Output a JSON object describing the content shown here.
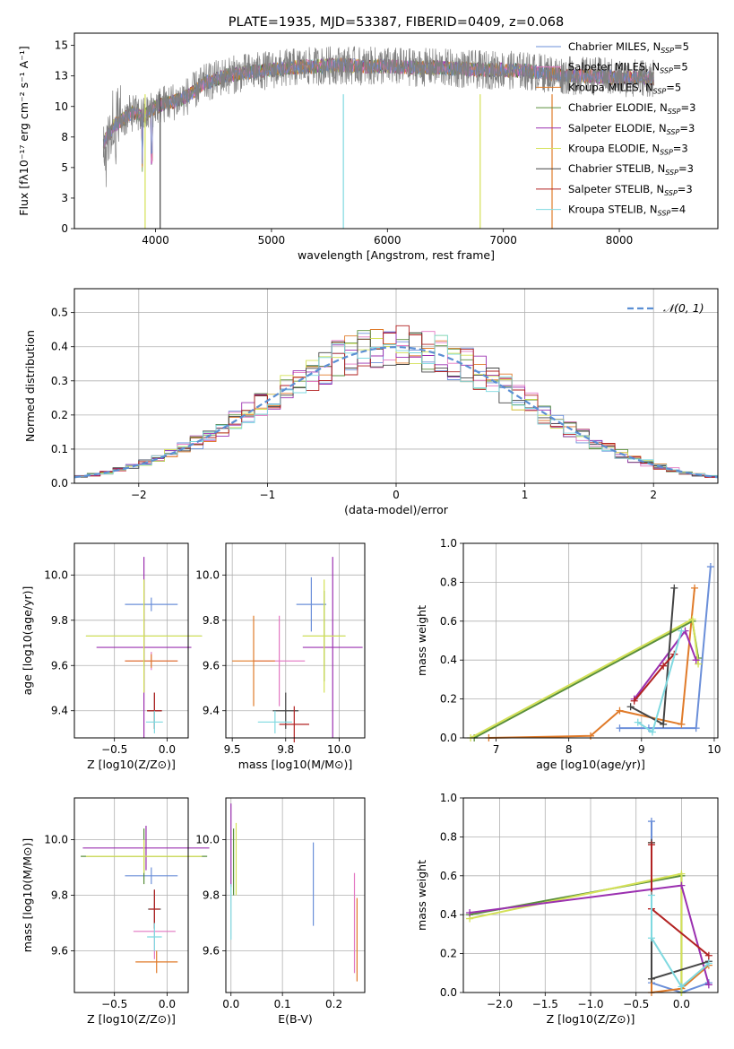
{
  "chart_data": [
    {
      "id": "spectrum",
      "type": "line",
      "title": "PLATE=1935, MJD=53387, FIBERID=0409, z=0.068",
      "xlabel": "wavelength [Angstrom, rest frame]",
      "ylabel": "Flux [fλ10⁻¹⁷ erg cm⁻² s⁻¹ A⁻¹]",
      "xlim": [
        3300,
        8850
      ],
      "ylim": [
        0,
        16
      ],
      "xticks": [
        4000,
        5000,
        6000,
        7000,
        8000
      ],
      "yticks": [
        0.0,
        2.5,
        5.0,
        7.5,
        10.0,
        12.5,
        15.0
      ],
      "legend_position": "top-right",
      "legend": [
        {
          "label": "Chabrier MILES, N_SSP=5",
          "color": "#6b8fd9"
        },
        {
          "label": "Salpeter MILES, N_SSP=5",
          "color": "#e377c2"
        },
        {
          "label": "Kroupa MILES, N_SSP=5",
          "color": "#e07b2a"
        },
        {
          "label": "Chabrier ELODIE, N_SSP=3",
          "color": "#5a8f3c"
        },
        {
          "label": "Salpeter ELODIE, N_SSP=3",
          "color": "#9b30b0"
        },
        {
          "label": "Kroupa ELODIE, N_SSP=3",
          "color": "#d4e157"
        },
        {
          "label": "Chabrier STELIB, N_SSP=3",
          "color": "#444444"
        },
        {
          "label": "Salpeter STELIB, N_SSP=3",
          "color": "#b22222"
        },
        {
          "label": "Kroupa STELIB, N_SSP=4",
          "color": "#7fd9e0"
        }
      ],
      "data_series": {
        "name": "data",
        "color": "#808080",
        "envelope_x": [
          3550,
          3650,
          3800,
          3900,
          4000,
          4100,
          4200,
          4300,
          4400,
          4600,
          4800,
          5000,
          5200,
          5400,
          5600,
          5800,
          6000,
          6200,
          6400,
          6600,
          6800,
          7000,
          7200,
          7400,
          7600,
          7800,
          8000,
          8200,
          8300
        ],
        "envelope_y": [
          7.0,
          8.5,
          9.5,
          9.2,
          10.0,
          10.3,
          10.5,
          11.0,
          11.8,
          12.5,
          12.8,
          13.0,
          13.2,
          13.3,
          13.4,
          13.3,
          13.3,
          13.2,
          13.2,
          13.1,
          13.0,
          13.0,
          12.9,
          12.7,
          12.5,
          12.5,
          12.3,
          12.4,
          12.3
        ]
      }
    },
    {
      "id": "residuals",
      "type": "line",
      "xlabel": "(data-model)/error",
      "ylabel": "Normed distribution",
      "xlim": [
        -2.5,
        2.5
      ],
      "ylim": [
        0,
        0.57
      ],
      "xticks": [
        -2,
        -1,
        0,
        1,
        2
      ],
      "yticks": [
        0.0,
        0.1,
        0.2,
        0.3,
        0.4,
        0.5
      ],
      "legend": [
        {
          "label": "N(0,1)",
          "color": "#5b8fd4"
        }
      ],
      "gaussian": {
        "mean": 0,
        "sigma": 1
      }
    },
    {
      "id": "age_vs_Z",
      "type": "scatter",
      "xlabel": "Z [log10(Z/Z⊙)]",
      "ylabel": "age  [log10(age/yr)]",
      "xlim": [
        -0.88,
        0.2
      ],
      "ylim": [
        9.28,
        10.14
      ],
      "xticks": [
        -0.5,
        0.0
      ],
      "yticks": [
        9.4,
        9.6,
        9.8,
        10.0
      ],
      "points": [
        {
          "color": "#6b8fd9",
          "x": -0.15,
          "y": 9.87,
          "xerr": 0.25,
          "yerr": 0.03
        },
        {
          "color": "#e377c2",
          "x": -0.15,
          "y": 9.62,
          "xerr": 0.25,
          "yerr": 0.04
        },
        {
          "color": "#e07b2a",
          "x": -0.15,
          "y": 9.62,
          "xerr": 0.25,
          "yerr": 0.03
        },
        {
          "color": "#5a8f3c",
          "x": -0.22,
          "y": 9.73,
          "xerr": 0.55,
          "yerr": 0.25
        },
        {
          "color": "#9b30b0",
          "x": -0.22,
          "y": 9.68,
          "xerr": 0.45,
          "yerr": 0.4
        },
        {
          "color": "#d4e157",
          "x": -0.22,
          "y": 9.73,
          "xerr": 0.55,
          "yerr": 0.25
        },
        {
          "color": "#444444",
          "x": -0.12,
          "y": 9.4,
          "xerr": 0.07,
          "yerr": 0.08
        },
        {
          "color": "#b22222",
          "x": -0.12,
          "y": 9.4,
          "xerr": 0.07,
          "yerr": 0.08
        },
        {
          "color": "#7fd9e0",
          "x": -0.12,
          "y": 9.35,
          "xerr": 0.08,
          "yerr": 0.05
        }
      ]
    },
    {
      "id": "age_vs_mass",
      "type": "scatter",
      "xlabel": "mass [log10(M/M⊙)]",
      "ylabel": "",
      "xlim": [
        9.47,
        10.12
      ],
      "ylim": [
        9.28,
        10.14
      ],
      "xticks": [
        9.5,
        9.75,
        10.0
      ],
      "yticks": [
        9.4,
        9.6,
        9.8,
        10.0
      ],
      "points": [
        {
          "color": "#6b8fd9",
          "x": 9.87,
          "y": 9.87,
          "xerr": 0.07,
          "yerr": 0.12
        },
        {
          "color": "#e377c2",
          "x": 9.72,
          "y": 9.62,
          "xerr": 0.12,
          "yerr": 0.2
        },
        {
          "color": "#e07b2a",
          "x": 9.6,
          "y": 9.62,
          "xerr": 0.1,
          "yerr": 0.2
        },
        {
          "color": "#5a8f3c",
          "x": 9.93,
          "y": 9.73,
          "xerr": 0.1,
          "yerr": 0.2
        },
        {
          "color": "#9b30b0",
          "x": 9.97,
          "y": 9.68,
          "xerr": 0.14,
          "yerr": 0.4
        },
        {
          "color": "#d4e157",
          "x": 9.93,
          "y": 9.73,
          "xerr": 0.1,
          "yerr": 0.25
        },
        {
          "color": "#444444",
          "x": 9.75,
          "y": 9.4,
          "xerr": 0.06,
          "yerr": 0.08
        },
        {
          "color": "#b22222",
          "x": 9.79,
          "y": 9.34,
          "xerr": 0.07,
          "yerr": 0.08
        },
        {
          "color": "#7fd9e0",
          "x": 9.7,
          "y": 9.35,
          "xerr": 0.08,
          "yerr": 0.05
        }
      ]
    },
    {
      "id": "weight_vs_age",
      "type": "line",
      "xlabel": "age  [log10(age/yr)]",
      "ylabel": "mass weight",
      "xlim": [
        6.55,
        10.05
      ],
      "ylim": [
        0,
        1.0
      ],
      "xticks": [
        7,
        8,
        9,
        10
      ],
      "yticks": [
        0.0,
        0.2,
        0.4,
        0.6,
        0.8,
        1.0
      ],
      "series": [
        {
          "color": "#6b8fd9",
          "x": [
            8.7,
            9.1,
            9.75,
            9.95
          ],
          "y": [
            0.05,
            0.05,
            0.05,
            0.88
          ]
        },
        {
          "color": "#e07b2a",
          "x": [
            6.9,
            8.3,
            8.7,
            9.55,
            9.73
          ],
          "y": [
            0.0,
            0.01,
            0.14,
            0.07,
            0.77
          ]
        },
        {
          "color": "#5a8f3c",
          "x": [
            6.7,
            9.7,
            9.78
          ],
          "y": [
            0.0,
            0.6,
            0.41
          ]
        },
        {
          "color": "#d4e157",
          "x": [
            6.65,
            9.7,
            9.78
          ],
          "y": [
            0.0,
            0.61,
            0.38
          ]
        },
        {
          "color": "#9b30b0",
          "x": [
            8.9,
            9.6,
            9.75
          ],
          "y": [
            0.2,
            0.55,
            0.4
          ]
        },
        {
          "color": "#444444",
          "x": [
            8.85,
            9.3,
            9.45
          ],
          "y": [
            0.16,
            0.07,
            0.77
          ]
        },
        {
          "color": "#b22222",
          "x": [
            8.9,
            9.3,
            9.45
          ],
          "y": [
            0.19,
            0.37,
            0.43
          ]
        },
        {
          "color": "#7fd9e0",
          "x": [
            8.95,
            9.15,
            9.55
          ],
          "y": [
            0.08,
            0.03,
            0.55
          ]
        }
      ]
    },
    {
      "id": "mass_vs_Z",
      "type": "scatter",
      "xlabel": "Z [log10(Z/Z⊙)]",
      "ylabel": "mass [log10(M/M⊙)]",
      "xlim": [
        -0.88,
        0.2
      ],
      "ylim": [
        9.45,
        10.15
      ],
      "xticks": [
        -0.5,
        0.0
      ],
      "yticks": [
        9.6,
        9.8,
        10.0
      ],
      "points": [
        {
          "color": "#6b8fd9",
          "x": -0.15,
          "y": 9.87,
          "xerr": 0.25,
          "yerr": 0.03
        },
        {
          "color": "#e377c2",
          "x": -0.12,
          "y": 9.67,
          "xerr": 0.2,
          "yerr": 0.1
        },
        {
          "color": "#e07b2a",
          "x": -0.1,
          "y": 9.56,
          "xerr": 0.2,
          "yerr": 0.04
        },
        {
          "color": "#5a8f3c",
          "x": -0.22,
          "y": 9.94,
          "xerr": 0.6,
          "yerr": 0.1
        },
        {
          "color": "#9b30b0",
          "x": -0.2,
          "y": 9.97,
          "xerr": 0.6,
          "yerr": 0.08
        },
        {
          "color": "#d4e157",
          "x": -0.22,
          "y": 9.94,
          "xerr": 0.55,
          "yerr": 0.06
        },
        {
          "color": "#444444",
          "x": -0.12,
          "y": 9.75,
          "xerr": 0.06,
          "yerr": 0.07
        },
        {
          "color": "#b22222",
          "x": -0.12,
          "y": 9.75,
          "xerr": 0.05,
          "yerr": 0.07
        },
        {
          "color": "#7fd9e0",
          "x": -0.12,
          "y": 9.65,
          "xerr": 0.07,
          "yerr": 0.05
        }
      ]
    },
    {
      "id": "mass_vs_ebv",
      "type": "scatter",
      "xlabel": "E(B-V)",
      "ylabel": "",
      "xlim": [
        -0.01,
        0.26
      ],
      "ylim": [
        9.45,
        10.15
      ],
      "xticks": [
        0.0,
        0.1,
        0.2
      ],
      "yticks": [
        9.6,
        9.8,
        10.0
      ],
      "points": [
        {
          "color": "#6b8fd9",
          "x": 0.16,
          "y": 9.84,
          "xerr": 0.0,
          "yerr": 0.15
        },
        {
          "color": "#e377c2",
          "x": 0.24,
          "y": 9.7,
          "xerr": 0.0,
          "yerr": 0.18
        },
        {
          "color": "#e07b2a",
          "x": 0.245,
          "y": 9.64,
          "xerr": 0.0,
          "yerr": 0.15
        },
        {
          "color": "#5a8f3c",
          "x": 0.005,
          "y": 9.92,
          "xerr": 0.0,
          "yerr": 0.12
        },
        {
          "color": "#9b30b0",
          "x": 0.0,
          "y": 9.98,
          "xerr": 0.0,
          "yerr": 0.15
        },
        {
          "color": "#d4e157",
          "x": 0.01,
          "y": 9.93,
          "xerr": 0.0,
          "yerr": 0.13
        },
        {
          "color": "#7fd9e0",
          "x": 0.0,
          "y": 9.74,
          "xerr": 0.0,
          "yerr": 0.1
        }
      ]
    },
    {
      "id": "weight_vs_Z",
      "type": "line",
      "xlabel": "Z [log10(Z/Z⊙)]",
      "ylabel": "mass weight",
      "xlim": [
        -2.4,
        0.4
      ],
      "ylim": [
        0,
        1.0
      ],
      "xticks": [
        -2.0,
        -1.5,
        -1.0,
        -0.5,
        0.0
      ],
      "yticks": [
        0.0,
        0.2,
        0.4,
        0.6,
        0.8,
        1.0
      ],
      "series": [
        {
          "color": "#6b8fd9",
          "x": [
            -0.33,
            -0.33,
            0.0,
            0.3
          ],
          "y": [
            0.88,
            0.05,
            0.0,
            0.05
          ]
        },
        {
          "color": "#e07b2a",
          "x": [
            -0.33,
            -0.33,
            0.0,
            0.3
          ],
          "y": [
            0.77,
            0.0,
            0.02,
            0.14
          ]
        },
        {
          "color": "#5a8f3c",
          "x": [
            -2.33,
            0.0,
            0.0
          ],
          "y": [
            0.4,
            0.6,
            0.0
          ]
        },
        {
          "color": "#d4e157",
          "x": [
            -2.33,
            0.0,
            0.0
          ],
          "y": [
            0.38,
            0.61,
            0.0
          ]
        },
        {
          "color": "#9b30b0",
          "x": [
            -2.33,
            0.0,
            0.3
          ],
          "y": [
            0.41,
            0.55,
            0.04
          ]
        },
        {
          "color": "#444444",
          "x": [
            -0.33,
            -0.33,
            0.3
          ],
          "y": [
            0.77,
            0.07,
            0.16
          ]
        },
        {
          "color": "#b22222",
          "x": [
            -0.33,
            -0.33,
            0.3
          ],
          "y": [
            0.76,
            0.43,
            0.19
          ]
        },
        {
          "color": "#7fd9e0",
          "x": [
            -0.33,
            -0.33,
            0.0,
            0.3
          ],
          "y": [
            0.5,
            0.28,
            0.03,
            0.15
          ]
        }
      ]
    }
  ]
}
